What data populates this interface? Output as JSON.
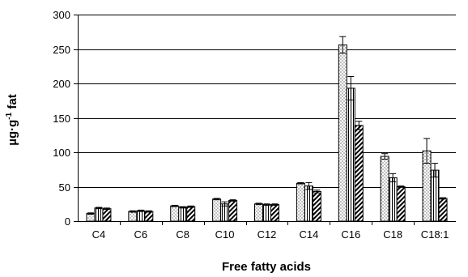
{
  "chart_data": {
    "type": "bar",
    "title": "",
    "xlabel": "Free fatty acids",
    "ylabel": {
      "base": "µg·g",
      "sup": "-1",
      "rest": " fat"
    },
    "ylim": [
      0,
      300
    ],
    "yticks": [
      "0",
      "50",
      "100",
      "150",
      "200",
      "250",
      "300"
    ],
    "grid": true,
    "legend": "none",
    "categories": [
      "C4",
      "C6",
      "C8",
      "C10",
      "C12",
      "C14",
      "C16",
      "C18",
      "C18:1"
    ],
    "series": [
      {
        "pattern": "dots",
        "values": [
          11,
          14,
          22,
          32,
          25,
          55,
          256,
          94,
          102
        ],
        "errors": [
          1,
          1,
          1,
          1,
          1,
          1,
          12,
          4,
          18
        ]
      },
      {
        "pattern": "vertical-lines",
        "values": [
          19,
          15,
          20,
          25,
          24,
          51,
          193,
          63,
          74
        ],
        "errors": [
          1,
          1,
          1,
          3,
          1,
          5,
          17,
          6,
          10
        ]
      },
      {
        "pattern": "diagonal-hatch",
        "values": [
          18,
          14,
          21,
          30,
          24,
          43,
          139,
          50,
          33
        ],
        "errors": [
          1,
          1,
          1,
          1,
          1,
          2,
          6,
          1,
          1
        ]
      }
    ]
  }
}
